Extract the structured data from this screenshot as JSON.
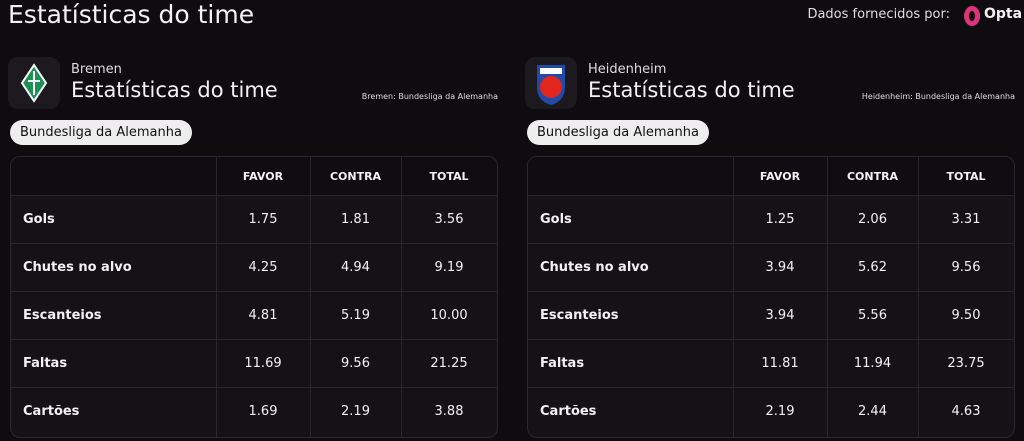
{
  "header": {
    "title": "Estatísticas do time",
    "provider_label": "Dados fornecidos por:",
    "provider": "Opta"
  },
  "panels": [
    {
      "team": "Bremen",
      "title": "Estatísticas do time",
      "note": "Bremen: Bundesliga da Alemanha",
      "chip": "Bundesliga da Alemanha",
      "table": {
        "columns": [
          "FAVOR",
          "CONTRA",
          "TOTAL"
        ],
        "rows": [
          [
            "Gols",
            "1.75",
            "1.81",
            "3.56"
          ],
          [
            "Chutes no alvo",
            "4.25",
            "4.94",
            "9.19"
          ],
          [
            "Escanteios",
            "4.81",
            "5.19",
            "10.00"
          ],
          [
            "Faltas",
            "11.69",
            "9.56",
            "21.25"
          ],
          [
            "Cartões",
            "1.69",
            "2.19",
            "3.88"
          ]
        ]
      }
    },
    {
      "team": "Heidenheim",
      "title": "Estatísticas do time",
      "note": "Heidenheim: Bundesliga da Alemanha",
      "chip": "Bundesliga da Alemanha",
      "table": {
        "columns": [
          "FAVOR",
          "CONTRA",
          "TOTAL"
        ],
        "rows": [
          [
            "Gols",
            "1.25",
            "2.06",
            "3.31"
          ],
          [
            "Chutes no alvo",
            "3.94",
            "5.62",
            "9.56"
          ],
          [
            "Escanteios",
            "3.94",
            "5.56",
            "9.50"
          ],
          [
            "Faltas",
            "11.81",
            "11.94",
            "23.75"
          ],
          [
            "Cartões",
            "2.19",
            "2.44",
            "4.63"
          ]
        ]
      }
    }
  ]
}
